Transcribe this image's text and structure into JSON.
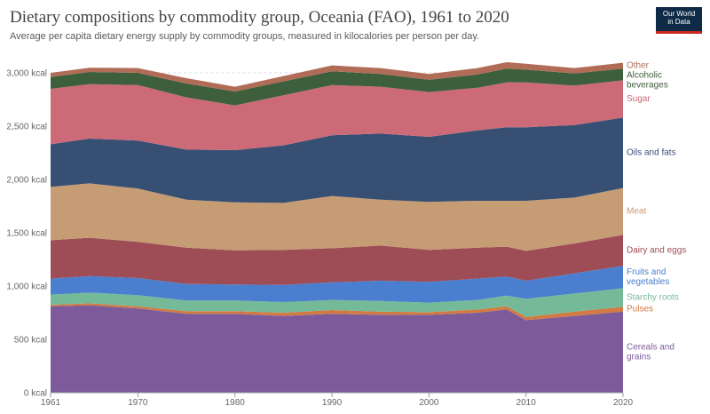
{
  "header": {
    "title": "Dietary compositions by commodity group, Oceania (FAO), 1961 to 2020",
    "subtitle": "Average per capita dietary energy supply by commodity groups, measured in kilocalories per person per day.",
    "logo_line1": "Our World",
    "logo_line2": "in Data"
  },
  "chart_data": {
    "type": "area",
    "stacked": true,
    "title": "Dietary compositions by commodity group, Oceania (FAO), 1961 to 2020",
    "xlabel": "",
    "ylabel": "",
    "unit": "kcal",
    "x": [
      1961,
      1965,
      1970,
      1975,
      1980,
      1985,
      1990,
      1995,
      2000,
      2005,
      2008,
      2010,
      2015,
      2020
    ],
    "x_ticks": [
      1961,
      1970,
      1980,
      1990,
      2000,
      2010,
      2020
    ],
    "ylim": [
      0,
      3000
    ],
    "y_ticks": [
      0,
      500,
      1000,
      1500,
      2000,
      2500,
      3000
    ],
    "y_tick_labels": [
      "0 kcal",
      "500 kcal",
      "1,000 kcal",
      "1,500 kcal",
      "2,000 kcal",
      "2,500 kcal",
      "3,000 kcal"
    ],
    "grid": true,
    "legend_position": "right",
    "series": [
      {
        "name": "Cereals and grains",
        "label_lines": [
          "Cereals and",
          "grains"
        ],
        "color": "#7d5b9a",
        "values": [
          810,
          820,
          790,
          740,
          740,
          720,
          740,
          730,
          730,
          750,
          780,
          680,
          720,
          760
        ]
      },
      {
        "name": "Pulses",
        "label_lines": [
          "Pulses"
        ],
        "color": "#d17a44",
        "values": [
          15,
          18,
          20,
          25,
          25,
          30,
          35,
          30,
          25,
          30,
          30,
          30,
          40,
          45
        ]
      },
      {
        "name": "Starchy roots",
        "label_lines": [
          "Starchy roots"
        ],
        "color": "#75ba98",
        "values": [
          95,
          100,
          105,
          100,
          100,
          100,
          95,
          100,
          90,
          90,
          100,
          170,
          170,
          175
        ]
      },
      {
        "name": "Fruits and vegetables",
        "label_lines": [
          "Fruits and",
          "vegetables"
        ],
        "color": "#4a7fcf",
        "values": [
          150,
          155,
          160,
          155,
          150,
          160,
          165,
          190,
          195,
          200,
          180,
          170,
          190,
          210
        ]
      },
      {
        "name": "Dairy and eggs",
        "label_lines": [
          "Dairy and eggs"
        ],
        "color": "#9e4d56",
        "values": [
          360,
          360,
          340,
          340,
          320,
          330,
          320,
          330,
          300,
          290,
          280,
          280,
          280,
          290
        ]
      },
      {
        "name": "Meat",
        "label_lines": [
          "Meat"
        ],
        "color": "#c69c74",
        "values": [
          500,
          510,
          500,
          450,
          450,
          440,
          490,
          430,
          450,
          440,
          430,
          470,
          430,
          440
        ]
      },
      {
        "name": "Oils and fats",
        "label_lines": [
          "Oils and fats"
        ],
        "color": "#374f73",
        "values": [
          400,
          420,
          450,
          470,
          490,
          540,
          570,
          620,
          610,
          660,
          690,
          690,
          680,
          660
        ]
      },
      {
        "name": "Sugar",
        "label_lines": [
          "Sugar"
        ],
        "color": "#cd6a78",
        "values": [
          520,
          510,
          520,
          490,
          420,
          470,
          470,
          440,
          420,
          400,
          420,
          420,
          370,
          350
        ]
      },
      {
        "name": "Alcoholic beverages",
        "label_lines": [
          "Alcoholic",
          "beverages"
        ],
        "color": "#3e5f3c",
        "values": [
          110,
          115,
          115,
          130,
          130,
          130,
          130,
          120,
          115,
          125,
          130,
          120,
          115,
          110
        ]
      },
      {
        "name": "Other",
        "label_lines": [
          "Other"
        ],
        "color": "#b06c56",
        "values": [
          40,
          40,
          45,
          50,
          45,
          50,
          55,
          55,
          55,
          60,
          60,
          55,
          50,
          55
        ]
      }
    ]
  }
}
